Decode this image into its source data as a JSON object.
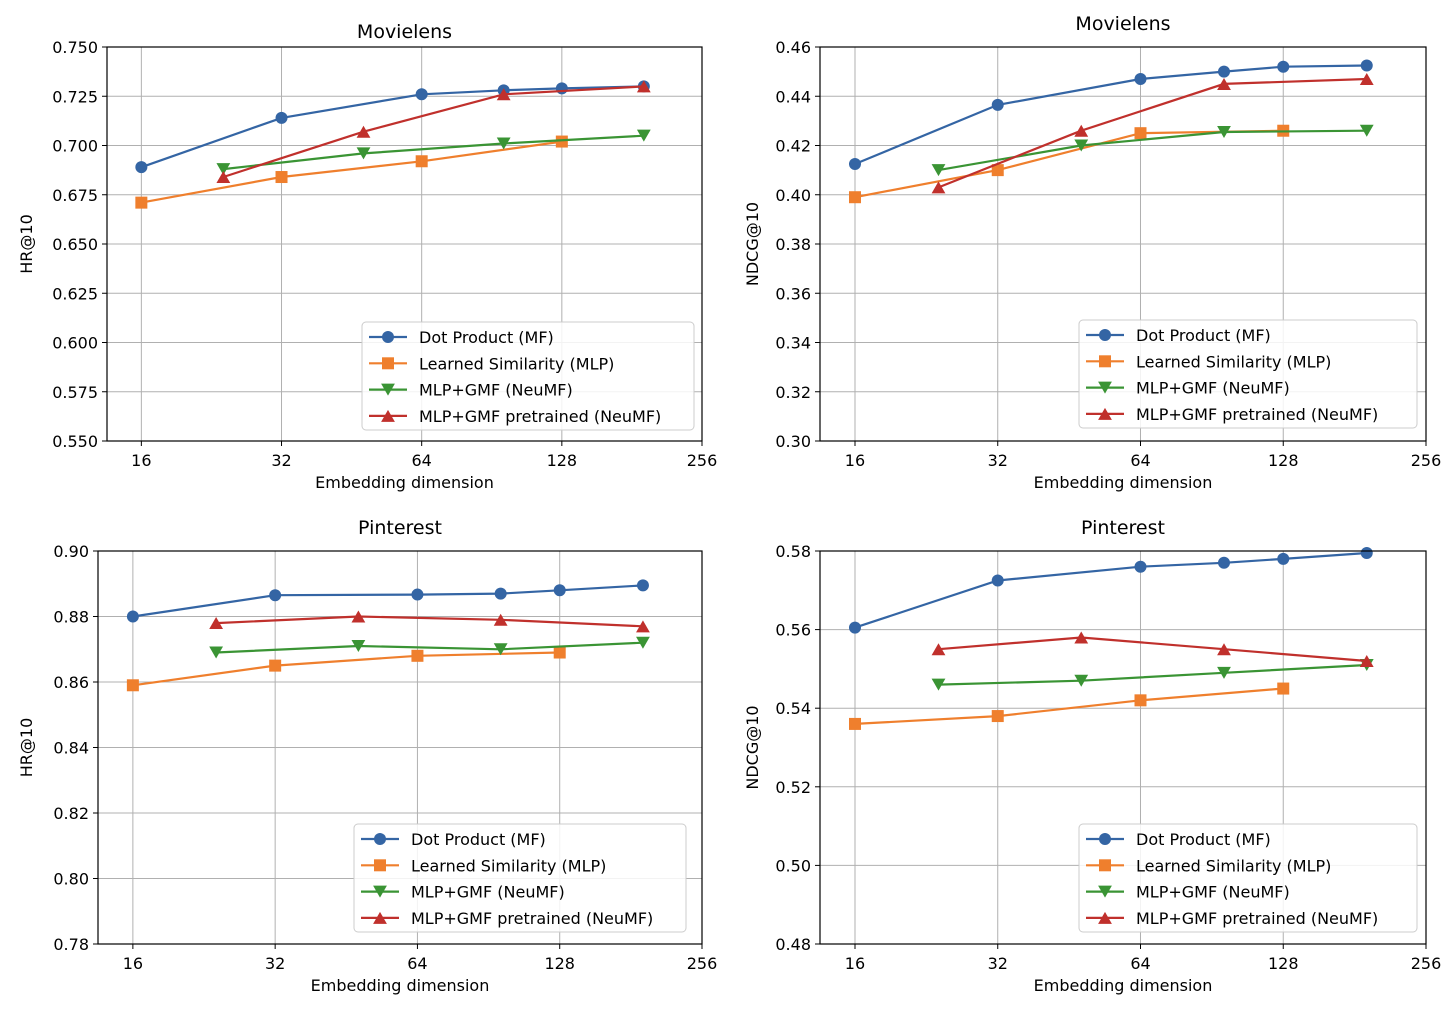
{
  "chart_data": [
    {
      "type": "line",
      "title": "Movielens",
      "xlabel": "Embedding dimension",
      "ylabel": "HR@10",
      "xscale": "log2",
      "xlim": [
        13.5,
        256
      ],
      "xticks": [
        16,
        32,
        64,
        128,
        256
      ],
      "ylim": [
        0.55,
        0.75
      ],
      "yticks": [
        "0.550",
        "0.575",
        "0.600",
        "0.625",
        "0.650",
        "0.675",
        "0.700",
        "0.725",
        "0.750"
      ],
      "grid": true,
      "legend": "lower-right",
      "series": [
        {
          "name": "Dot Product (MF)",
          "marker": "circle",
          "color": "#3465a4",
          "x": [
            16,
            32,
            64,
            96,
            128,
            192
          ],
          "y": [
            0.689,
            0.714,
            0.726,
            0.728,
            0.729,
            0.73
          ]
        },
        {
          "name": "Learned Similarity (MLP)",
          "marker": "square",
          "color": "#ef7f2d",
          "x": [
            16,
            32,
            64,
            128
          ],
          "y": [
            0.671,
            0.684,
            0.692,
            0.702
          ]
        },
        {
          "name": "MLP+GMF (NeuMF)",
          "marker": "triangle-down",
          "color": "#3a9434",
          "x": [
            24,
            48,
            96,
            192
          ],
          "y": [
            0.688,
            0.696,
            0.701,
            0.705
          ]
        },
        {
          "name": "MLP+GMF pretrained (NeuMF)",
          "marker": "triangle-up",
          "color": "#c0302c",
          "x": [
            24,
            48,
            96,
            192
          ],
          "y": [
            0.684,
            0.707,
            0.726,
            0.73
          ]
        }
      ]
    },
    {
      "type": "line",
      "title": "Movielens",
      "xlabel": "Embedding dimension",
      "ylabel": "NDCG@10",
      "xscale": "log2",
      "xlim": [
        13.5,
        256
      ],
      "xticks": [
        16,
        32,
        64,
        128,
        256
      ],
      "ylim": [
        0.3,
        0.46
      ],
      "yticks": [
        "0.30",
        "0.32",
        "0.34",
        "0.36",
        "0.38",
        "0.40",
        "0.42",
        "0.44",
        "0.46"
      ],
      "grid": true,
      "legend": "lower-right",
      "series": [
        {
          "name": "Dot Product (MF)",
          "marker": "circle",
          "color": "#3465a4",
          "x": [
            16,
            32,
            64,
            96,
            128,
            192
          ],
          "y": [
            0.4125,
            0.4365,
            0.447,
            0.45,
            0.452,
            0.4525
          ]
        },
        {
          "name": "Learned Similarity (MLP)",
          "marker": "square",
          "color": "#ef7f2d",
          "x": [
            16,
            32,
            64,
            128
          ],
          "y": [
            0.399,
            0.41,
            0.425,
            0.426
          ]
        },
        {
          "name": "MLP+GMF (NeuMF)",
          "marker": "triangle-down",
          "color": "#3a9434",
          "x": [
            24,
            48,
            96,
            192
          ],
          "y": [
            0.41,
            0.42,
            0.4255,
            0.426
          ]
        },
        {
          "name": "MLP+GMF pretrained (NeuMF)",
          "marker": "triangle-up",
          "color": "#c0302c",
          "x": [
            24,
            48,
            96,
            192
          ],
          "y": [
            0.403,
            0.426,
            0.445,
            0.447
          ]
        }
      ]
    },
    {
      "type": "line",
      "title": "Pinterest",
      "xlabel": "Embedding dimension",
      "ylabel": "HR@10",
      "xscale": "log2",
      "xlim": [
        13.5,
        256
      ],
      "xticks": [
        16,
        32,
        64,
        128,
        256
      ],
      "ylim": [
        0.78,
        0.9
      ],
      "yticks": [
        "0.78",
        "0.80",
        "0.82",
        "0.84",
        "0.86",
        "0.88",
        "0.90"
      ],
      "grid": true,
      "legend": "lower-right",
      "series": [
        {
          "name": "Dot Product (MF)",
          "marker": "circle",
          "color": "#3465a4",
          "x": [
            16,
            32,
            64,
            96,
            128,
            192
          ],
          "y": [
            0.88,
            0.8865,
            0.8867,
            0.887,
            0.888,
            0.8895
          ]
        },
        {
          "name": "Learned Similarity (MLP)",
          "marker": "square",
          "color": "#ef7f2d",
          "x": [
            16,
            32,
            64,
            128
          ],
          "y": [
            0.859,
            0.865,
            0.868,
            0.869
          ]
        },
        {
          "name": "MLP+GMF (NeuMF)",
          "marker": "triangle-down",
          "color": "#3a9434",
          "x": [
            24,
            48,
            96,
            192
          ],
          "y": [
            0.869,
            0.871,
            0.87,
            0.872
          ]
        },
        {
          "name": "MLP+GMF pretrained (NeuMF)",
          "marker": "triangle-up",
          "color": "#c0302c",
          "x": [
            24,
            48,
            96,
            192
          ],
          "y": [
            0.878,
            0.88,
            0.879,
            0.877
          ]
        }
      ]
    },
    {
      "type": "line",
      "title": "Pinterest",
      "xlabel": "Embedding dimension",
      "ylabel": "NDCG@10",
      "xscale": "log2",
      "xlim": [
        13.5,
        256
      ],
      "xticks": [
        16,
        32,
        64,
        128,
        256
      ],
      "ylim": [
        0.48,
        0.58
      ],
      "yticks": [
        "0.48",
        "0.50",
        "0.52",
        "0.54",
        "0.56",
        "0.58"
      ],
      "grid": true,
      "legend": "lower-right",
      "series": [
        {
          "name": "Dot Product (MF)",
          "marker": "circle",
          "color": "#3465a4",
          "x": [
            16,
            32,
            64,
            96,
            128,
            192
          ],
          "y": [
            0.5605,
            0.5725,
            0.576,
            0.577,
            0.578,
            0.5795
          ]
        },
        {
          "name": "Learned Similarity (MLP)",
          "marker": "square",
          "color": "#ef7f2d",
          "x": [
            16,
            32,
            64,
            128
          ],
          "y": [
            0.536,
            0.538,
            0.542,
            0.545
          ]
        },
        {
          "name": "MLP+GMF (NeuMF)",
          "marker": "triangle-down",
          "color": "#3a9434",
          "x": [
            24,
            48,
            96,
            192
          ],
          "y": [
            0.546,
            0.547,
            0.549,
            0.551
          ]
        },
        {
          "name": "MLP+GMF pretrained (NeuMF)",
          "marker": "triangle-up",
          "color": "#c0302c",
          "x": [
            24,
            48,
            96,
            192
          ],
          "y": [
            0.555,
            0.558,
            0.555,
            0.552
          ]
        }
      ]
    }
  ]
}
